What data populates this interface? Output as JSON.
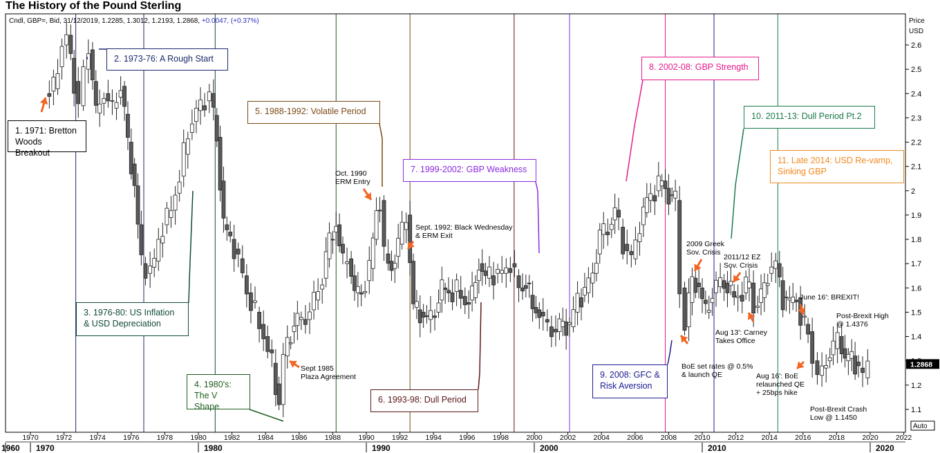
{
  "title": "The History of the Pound Sterling",
  "header_info": {
    "main": "Cndl, GBP=, Bid, 31/12/2019, 1.2285, 1.3012, 1.2193, 1.2868,",
    "change": "+0.0047, (+0.37%)"
  },
  "price_axis": {
    "label_1": "Price",
    "label_2": "USD",
    "last_price": "1.2868",
    "auto_label": "Auto"
  },
  "chart_data": {
    "type": "candlestick",
    "title": "The History of the Pound Sterling",
    "instrument": "GBP=",
    "interval": "quarterly",
    "ylabel": "Price USD",
    "ylim": [
      1.05,
      2.68
    ],
    "xlim": [
      1969.3,
      2022.3
    ],
    "y_ticks": [
      1.1,
      1.2,
      1.3,
      1.4,
      1.5,
      1.6,
      1.7,
      1.8,
      1.9,
      2,
      2.1,
      2.2,
      2.3,
      2.4,
      2.5,
      2.6
    ],
    "x_ticks": [
      1970,
      1972,
      1974,
      1976,
      1978,
      1980,
      1982,
      1984,
      1986,
      1988,
      1990,
      1992,
      1994,
      1996,
      1998,
      2000,
      2002,
      2004,
      2006,
      2008,
      2010,
      2012,
      2014,
      2016,
      2018,
      2020,
      2022
    ],
    "decade_labels": [
      "1960",
      "1970",
      "1980",
      "1990",
      "2000",
      "2010",
      "2020"
    ],
    "last_bar": {
      "date": "31/12/2019",
      "open": 1.2285,
      "high": 1.3012,
      "low": 1.2193,
      "close": 1.2868,
      "change": "+0.0047",
      "change_pct": "+0.37%"
    },
    "close_path": [
      [
        1971.0,
        2.4
      ],
      [
        1971.5,
        2.42
      ],
      [
        1972.0,
        2.6
      ],
      [
        1972.3,
        2.64
      ],
      [
        1972.7,
        2.45
      ],
      [
        1973.0,
        2.35
      ],
      [
        1973.3,
        2.5
      ],
      [
        1973.6,
        2.58
      ],
      [
        1974.0,
        2.32
      ],
      [
        1974.5,
        2.4
      ],
      [
        1975.0,
        2.34
      ],
      [
        1975.5,
        2.43
      ],
      [
        1975.9,
        2.2
      ],
      [
        1976.3,
        2.02
      ],
      [
        1976.7,
        1.7
      ],
      [
        1977.0,
        1.66
      ],
      [
        1977.5,
        1.71
      ],
      [
        1978.0,
        1.86
      ],
      [
        1978.5,
        1.92
      ],
      [
        1979.0,
        2.06
      ],
      [
        1979.5,
        2.24
      ],
      [
        1980.0,
        2.33
      ],
      [
        1980.5,
        2.37
      ],
      [
        1980.8,
        2.4
      ],
      [
        1981.2,
        2.22
      ],
      [
        1981.6,
        1.86
      ],
      [
        1982.0,
        1.8
      ],
      [
        1982.5,
        1.72
      ],
      [
        1983.0,
        1.58
      ],
      [
        1983.5,
        1.5
      ],
      [
        1984.0,
        1.4
      ],
      [
        1984.5,
        1.29
      ],
      [
        1984.9,
        1.12
      ],
      [
        1985.2,
        1.32
      ],
      [
        1985.6,
        1.42
      ],
      [
        1986.0,
        1.47
      ],
      [
        1986.5,
        1.47
      ],
      [
        1987.0,
        1.55
      ],
      [
        1987.5,
        1.64
      ],
      [
        1987.9,
        1.8
      ],
      [
        1988.3,
        1.86
      ],
      [
        1988.7,
        1.7
      ],
      [
        1989.0,
        1.72
      ],
      [
        1989.4,
        1.58
      ],
      [
        1989.8,
        1.58
      ],
      [
        1990.3,
        1.68
      ],
      [
        1990.7,
        1.92
      ],
      [
        1990.9,
        1.96
      ],
      [
        1991.2,
        1.74
      ],
      [
        1991.6,
        1.68
      ],
      [
        1992.0,
        1.78
      ],
      [
        1992.5,
        1.9
      ],
      [
        1992.9,
        1.52
      ],
      [
        1993.3,
        1.5
      ],
      [
        1993.7,
        1.47
      ],
      [
        1994.2,
        1.5
      ],
      [
        1994.6,
        1.6
      ],
      [
        1995.0,
        1.58
      ],
      [
        1995.5,
        1.59
      ],
      [
        1996.0,
        1.54
      ],
      [
        1996.4,
        1.56
      ],
      [
        1996.8,
        1.7
      ],
      [
        1997.2,
        1.64
      ],
      [
        1997.7,
        1.66
      ],
      [
        1998.2,
        1.66
      ],
      [
        1998.7,
        1.7
      ],
      [
        1999.2,
        1.6
      ],
      [
        1999.6,
        1.62
      ],
      [
        2000.0,
        1.52
      ],
      [
        2000.4,
        1.5
      ],
      [
        2000.9,
        1.44
      ],
      [
        2001.4,
        1.42
      ],
      [
        2001.8,
        1.46
      ],
      [
        2002.2,
        1.44
      ],
      [
        2002.7,
        1.56
      ],
      [
        2003.1,
        1.58
      ],
      [
        2003.6,
        1.66
      ],
      [
        2004.0,
        1.82
      ],
      [
        2004.5,
        1.84
      ],
      [
        2004.9,
        1.92
      ],
      [
        2005.4,
        1.78
      ],
      [
        2005.9,
        1.72
      ],
      [
        2006.4,
        1.86
      ],
      [
        2006.8,
        1.96
      ],
      [
        2007.3,
        2.0
      ],
      [
        2007.7,
        2.04
      ],
      [
        2008.1,
        1.98
      ],
      [
        2008.5,
        1.96
      ],
      [
        2008.8,
        1.6
      ],
      [
        2009.1,
        1.44
      ],
      [
        2009.5,
        1.64
      ],
      [
        2009.9,
        1.6
      ],
      [
        2010.3,
        1.5
      ],
      [
        2010.7,
        1.58
      ],
      [
        2011.2,
        1.63
      ],
      [
        2011.6,
        1.61
      ],
      [
        2012.0,
        1.56
      ],
      [
        2012.5,
        1.58
      ],
      [
        2012.9,
        1.62
      ],
      [
        2013.2,
        1.52
      ],
      [
        2013.6,
        1.56
      ],
      [
        2014.0,
        1.66
      ],
      [
        2014.5,
        1.7
      ],
      [
        2014.9,
        1.56
      ],
      [
        2015.3,
        1.54
      ],
      [
        2015.7,
        1.56
      ],
      [
        2016.0,
        1.48
      ],
      [
        2016.4,
        1.42
      ],
      [
        2016.7,
        1.3
      ],
      [
        2017.0,
        1.24
      ],
      [
        2017.5,
        1.3
      ],
      [
        2017.9,
        1.35
      ],
      [
        2018.2,
        1.4
      ],
      [
        2018.6,
        1.3
      ],
      [
        2019.0,
        1.32
      ],
      [
        2019.4,
        1.27
      ],
      [
        2019.7,
        1.23
      ],
      [
        2020.0,
        1.29
      ]
    ],
    "annotations": [
      "1. 1971: Bretton Woods Breakout",
      "2. 1973-76: A Rough Start",
      "3. 1976-80: US Inflation & USD Depreciation",
      "4. 1980's: The V Shape",
      "5. 1988-1992: Volatile Period",
      "6. 1993-98: Dull Period",
      "7. 1999-2002: GBP Weakness",
      "8. 2002-08: GBP Strength",
      "9. 2008: GFC & Risk Aversion",
      "10. 2011-13: Dull Period Pt.2",
      "11. Late 2014: USD Re-vamp, Sinking GBP"
    ],
    "grid": false
  },
  "boxes": {
    "b1": "1. 1971: Bretton\nWoods Breakout",
    "b2": "2. 1973-76: A Rough Start",
    "b3": "3. 1976-80: US Inflation\n& USD Depreciation",
    "b4": "4. 1980's:\nThe V Shape",
    "b5": "5. 1988-1992: Volatile Period",
    "b6": "6. 1993-98: Dull Period",
    "b7": "7. 1999-2002: GBP Weakness",
    "b8": "8. 2002-08: GBP Strength",
    "b9": "9. 2008: GFC &\nRisk Aversion",
    "b10": "10. 2011-13: Dull Period Pt.2",
    "b11": "11. Late 2014: USD Re-vamp,\nSinking GBP"
  },
  "notes": {
    "oct1990": "Oct. 1990\nERM Entry",
    "sept1992": "Sept. 1992: Black Wednesday\n& ERM Exit",
    "sept1985": "Sept 1985\nPlaza Agreement",
    "greek2009": "2009 Greek\nSov. Crisis",
    "ez2011": "2011/12 EZ\nSov. Crisis",
    "boe2009": "BoE set rates @ 0.5%\n& launch QE",
    "carney": "Aug 13': Carney\nTakes Office",
    "brexit": "June 16': BREXIT!",
    "postbrexithigh": "Post-Brexit High\n@ 1.4376",
    "boe2016": "Aug 16': BoE\nrelaunched QE\n+ 25bps hike",
    "postbrexitlow": "Post-Brexit Crash\nLow @ 1.1450"
  },
  "colors": {
    "up_fill": "#ffffff",
    "down_fill": "#5a5a5a",
    "candle_edge": "#222222",
    "arrow": "#f26522",
    "c1": "#000000",
    "c2": "#1a2a6c",
    "c3": "#0f4a3a",
    "c4": "#1e5c1e",
    "c5": "#7a4a14",
    "c6": "#5a1515",
    "c7": "#8a2be2",
    "c8": "#e6198a",
    "c9": "#1a1a90",
    "c10": "#1a7a4a",
    "c11": "#f28a20"
  }
}
